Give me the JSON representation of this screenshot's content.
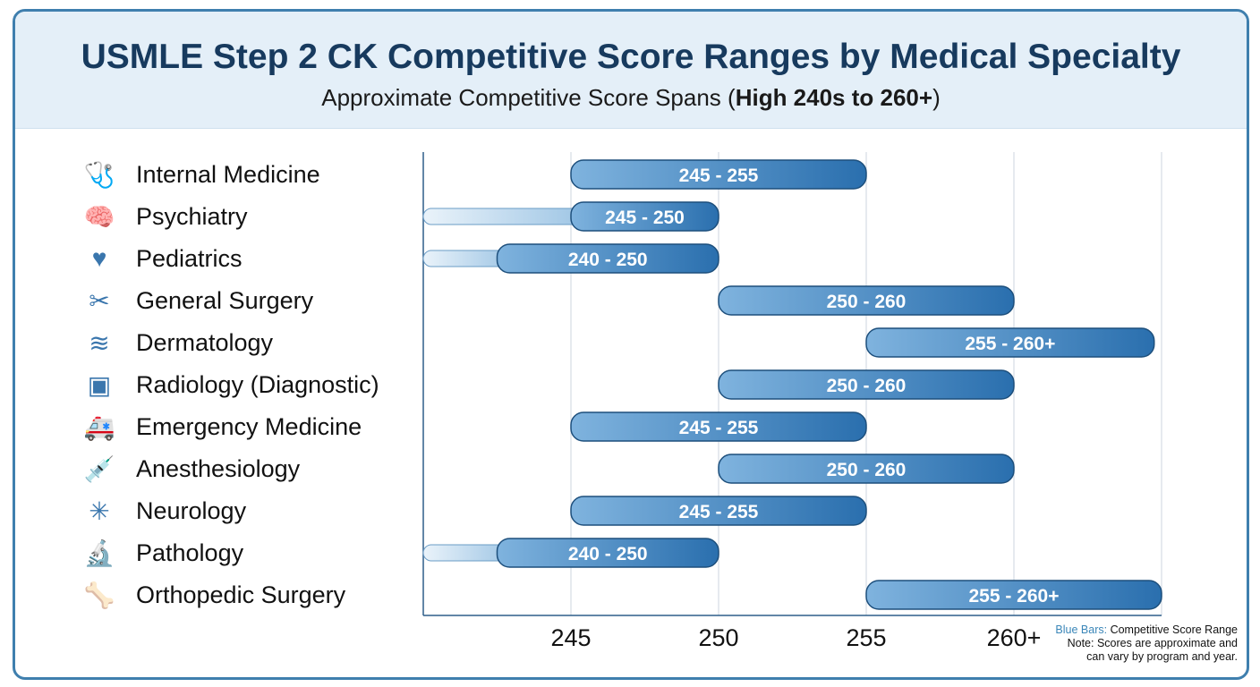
{
  "title": "USMLE Step 2 CK Competitive Score Ranges by Medical Specialty",
  "subtitle_prefix": "Approximate Competitive Score Spans (",
  "subtitle_bold": "High 240s to 260+",
  "subtitle_suffix": ")",
  "legend": {
    "key": "Blue Bars:",
    "key_text": " Competitive Score Range",
    "note_line1": "Note: Scores are approximate and",
    "note_line2": "can vary by program and year."
  },
  "colors": {
    "bar_dark": "#2a6fae",
    "bar_light": "#d7e8f5",
    "bar_border": "#1d4f7c",
    "title": "#173a5e",
    "frame": "#3f7fae"
  },
  "chart_data": {
    "type": "bar",
    "orientation": "horizontal-range",
    "title": "USMLE Step 2 CK Competitive Score Ranges by Medical Specialty",
    "subtitle": "Approximate Competitive Score Spans (High 240s to 260+)",
    "xlim": [
      240,
      265
    ],
    "x_ticks": [
      245,
      250,
      255,
      260
    ],
    "x_tick_labels": [
      "245",
      "250",
      "255",
      "260+"
    ],
    "grid": true,
    "legend_placement": "bottom-right",
    "categories": [
      {
        "name": "Internal Medicine",
        "icon": "stethoscope-icon",
        "glyph": "🩺",
        "low": 245,
        "high": 255,
        "label": "245 - 255",
        "extension_from": null
      },
      {
        "name": "Psychiatry",
        "icon": "brain-icon",
        "glyph": "🧠",
        "low": 245,
        "high": 250,
        "label": "245 - 250",
        "extension_from": 240
      },
      {
        "name": "Pediatrics",
        "icon": "heart-child-icon",
        "glyph": "♥",
        "low": 242.5,
        "high": 250,
        "label": "240 - 250",
        "extension_from": 240
      },
      {
        "name": "General Surgery",
        "icon": "scalpel-icon",
        "glyph": "✂",
        "low": 250,
        "high": 260,
        "label": "250 - 260",
        "extension_from": null
      },
      {
        "name": "Dermatology",
        "icon": "skin-hair-icon",
        "glyph": "≋",
        "low": 255,
        "high": 264.75,
        "label": "255 - 260+",
        "extension_from": null
      },
      {
        "name": "Radiology (Diagnostic)",
        "icon": "xray-icon",
        "glyph": "▣",
        "low": 250,
        "high": 260,
        "label": "250 - 260",
        "extension_from": null
      },
      {
        "name": "Emergency Medicine",
        "icon": "ambulance-icon",
        "glyph": "🚑",
        "low": 245,
        "high": 255,
        "label": "245 - 255",
        "extension_from": null
      },
      {
        "name": "Anesthesiology",
        "icon": "mask-syringe-icon",
        "glyph": "💉",
        "low": 250,
        "high": 260,
        "label": "250 - 260",
        "extension_from": null
      },
      {
        "name": "Neurology",
        "icon": "neuron-icon",
        "glyph": "✳",
        "low": 245,
        "high": 255,
        "label": "245 - 255",
        "extension_from": null
      },
      {
        "name": "Pathology",
        "icon": "microscope-icon",
        "glyph": "🔬",
        "low": 242.5,
        "high": 250,
        "label": "240 - 250",
        "extension_from": 240
      },
      {
        "name": "Orthopedic Surgery",
        "icon": "bone-joint-icon",
        "glyph": "🦴",
        "low": 255,
        "high": 265,
        "label": "255 - 260+",
        "extension_from": null
      }
    ]
  }
}
